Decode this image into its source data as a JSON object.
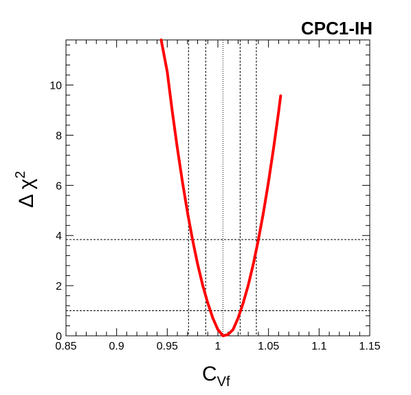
{
  "chart_data": {
    "type": "line",
    "title": "CPC1-IH",
    "xlabel_main": "C",
    "xlabel_sub": "Vf",
    "ylabel_main": "Δ χ",
    "ylabel_sup": "2",
    "xlim": [
      0.85,
      1.15
    ],
    "ylim": [
      0,
      11.8
    ],
    "x_ticks": [
      0.85,
      0.9,
      0.95,
      1,
      1.05,
      1.1,
      1.15
    ],
    "x_tick_labels": [
      "0.85",
      "0.9",
      "0.95",
      "1",
      "1.05",
      "1.1",
      "1.15"
    ],
    "y_ticks": [
      0,
      2,
      4,
      6,
      8,
      10
    ],
    "y_tick_labels": [
      "0",
      "2",
      "4",
      "6",
      "8",
      "10"
    ],
    "grid": false,
    "series": [
      {
        "color": "#ff0000",
        "x": [
          0.944,
          0.95,
          0.955,
          0.96,
          0.965,
          0.97,
          0.975,
          0.98,
          0.985,
          0.99,
          0.995,
          1.0,
          1.005,
          1.01,
          1.015,
          1.02,
          1.025,
          1.03,
          1.035,
          1.04,
          1.045,
          1.05,
          1.055,
          1.06,
          1.062
        ],
        "y": [
          11.8,
          10.53,
          8.94,
          7.48,
          6.14,
          4.92,
          3.83,
          2.86,
          2.02,
          1.31,
          0.71,
          0.25,
          0.0,
          0.05,
          0.25,
          0.71,
          1.31,
          2.02,
          2.86,
          3.83,
          4.92,
          6.14,
          7.48,
          8.94,
          9.57
        ]
      }
    ],
    "reference_lines": {
      "horizontal": [
        1.0,
        3.84
      ],
      "vertical_dashed": [
        0.971,
        0.988,
        1.022,
        1.038
      ],
      "vertical_dotted": [
        1.005
      ]
    },
    "colors": {
      "curve": "#ff0000",
      "axes": "#000000",
      "reference": "#000000"
    }
  }
}
